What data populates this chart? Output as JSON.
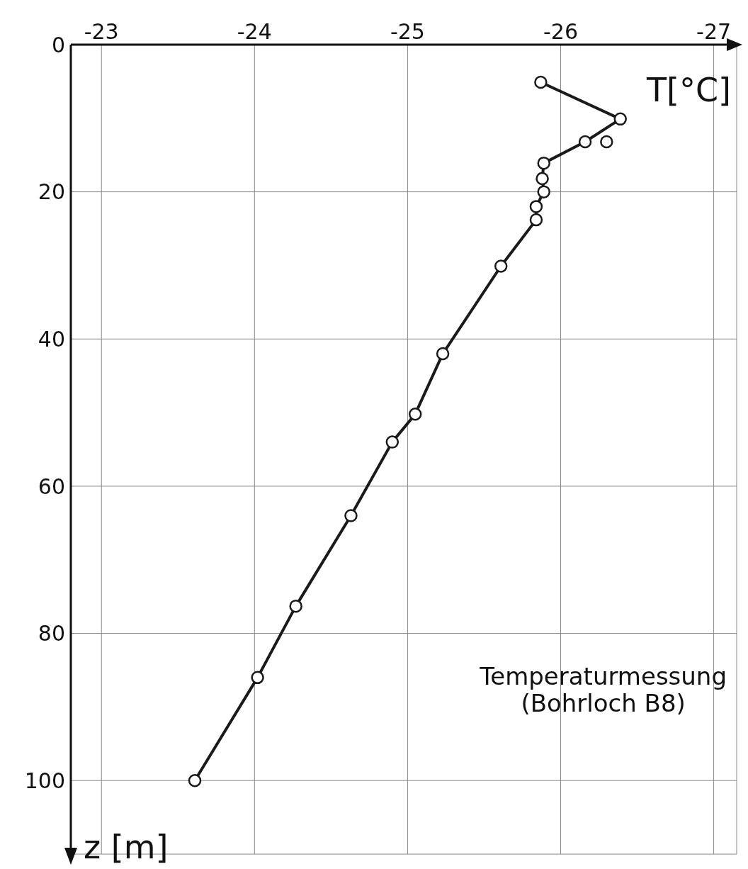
{
  "chart_data": {
    "type": "line",
    "xlabel": "T[°C]",
    "ylabel": "z [m]",
    "xlim": [
      -22.8,
      -27.15
    ],
    "xticks": [
      -23,
      -24,
      -25,
      -26,
      -27
    ],
    "ylim": [
      110,
      0
    ],
    "yticks": [
      0,
      20,
      40,
      60,
      80,
      100
    ],
    "grid": true,
    "marker": "circle",
    "line_style": "solid",
    "annotations": [
      "Temperaturmessung",
      "(Bohrloch B8)"
    ],
    "series": [
      {
        "color": "#1a1a1a",
        "x": [
          -25.87,
          -26.39,
          -26.16,
          -25.89,
          -25.88,
          -25.89,
          -25.84,
          -25.84,
          -25.61,
          -25.23,
          -25.05,
          -24.9,
          -24.63,
          -24.27,
          -24.02,
          -23.61
        ],
        "values": [
          5.1,
          10.1,
          13.2,
          16.1,
          18.2,
          20,
          22,
          23.8,
          30.1,
          42,
          50.2,
          54,
          64,
          76.3,
          86,
          100
        ]
      },
      {
        "type": "scatter",
        "color": "#1a1a1a",
        "x": [
          -26.3
        ],
        "values": [
          13.2
        ]
      }
    ]
  }
}
